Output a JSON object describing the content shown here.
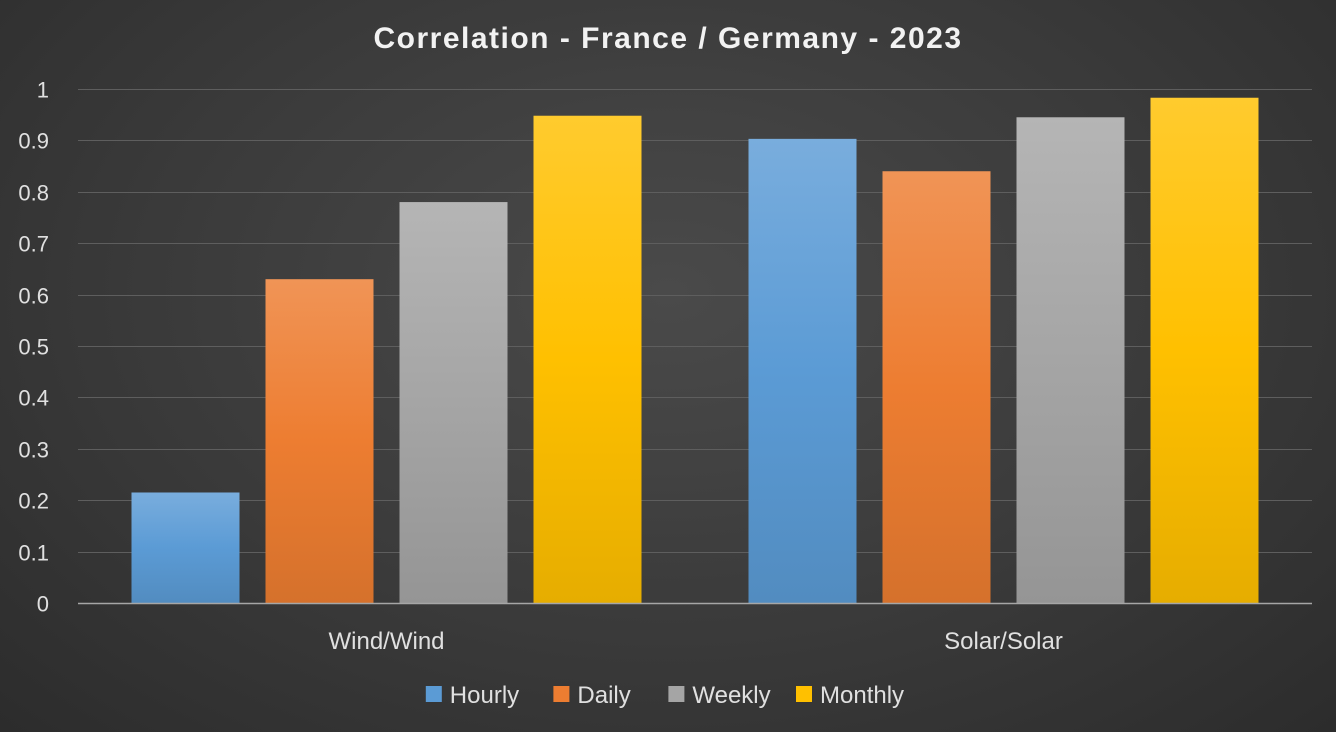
{
  "chart_data": {
    "type": "bar",
    "title": "Correlation - France / Germany - 2023",
    "xlabel": "",
    "ylabel": "",
    "categories": [
      "Wind/Wind",
      "Solar/Solar"
    ],
    "series": [
      {
        "name": "Hourly",
        "values": [
          0.215,
          0.903
        ],
        "color": "#5b9bd5"
      },
      {
        "name": "Daily",
        "values": [
          0.63,
          0.84
        ],
        "color": "#ed7d31"
      },
      {
        "name": "Weekly",
        "values": [
          0.78,
          0.945
        ],
        "color": "#a5a5a5"
      },
      {
        "name": "Monthly",
        "values": [
          0.948,
          0.983
        ],
        "color": "#ffc000"
      }
    ],
    "ylim": [
      0,
      1
    ],
    "yticks": [
      "0",
      "0.1",
      "0.2",
      "0.3",
      "0.4",
      "0.5",
      "0.6",
      "0.7",
      "0.8",
      "0.9",
      "1"
    ],
    "grid": true,
    "legend": "bottom"
  }
}
